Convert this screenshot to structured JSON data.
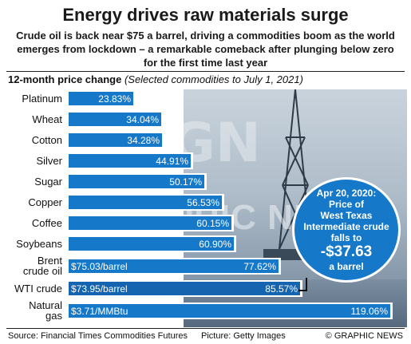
{
  "header": {
    "title": "Energy drives raw materials surge",
    "subtitle": "Crude oil is back near $75 a barrel, driving a commodities boom as the world emerges from lockdown – a remarkable comeback after plunging below zero for the first time last year"
  },
  "chart_data": {
    "type": "bar",
    "orientation": "horizontal",
    "title": "12-month price change",
    "note": "(Selected commodities to July 1, 2021)",
    "categories": [
      "Platinum",
      "Wheat",
      "Cotton",
      "Silver",
      "Sugar",
      "Copper",
      "Coffee",
      "Soybeans",
      "Brent crude oil",
      "WTI crude",
      "Natural gas"
    ],
    "labels": [
      [
        "Platinum"
      ],
      [
        "Wheat"
      ],
      [
        "Cotton"
      ],
      [
        "Silver"
      ],
      [
        "Sugar"
      ],
      [
        "Copper"
      ],
      [
        "Coffee"
      ],
      [
        "Soybeans"
      ],
      [
        "Brent",
        "crude oil"
      ],
      [
        "WTI crude"
      ],
      [
        "Natural",
        "gas"
      ]
    ],
    "values": [
      23.83,
      34.04,
      34.28,
      44.91,
      50.17,
      56.53,
      60.15,
      60.9,
      77.62,
      85.57,
      119.06
    ],
    "value_labels": [
      "23.83%",
      "34.04%",
      "34.28%",
      "44.91%",
      "50.17%",
      "56.53%",
      "60.15%",
      "60.90%",
      "77.62%",
      "85.57%",
      "119.06%"
    ],
    "price_labels": [
      "",
      "",
      "",
      "",
      "",
      "",
      "",
      "",
      "$75.03/barrel",
      "$73.95/barrel",
      "$3.71/MMBtu"
    ],
    "xlim": [
      0,
      125
    ],
    "unit": "%",
    "bar_color": "#1578c9",
    "highlight_color": "#1564b0",
    "highlight_category": "WTI crude",
    "grid": false
  },
  "callout": {
    "lines": [
      "Apr 20, 2020:",
      "Price of",
      "West Texas",
      "Intermediate crude",
      "falls to"
    ],
    "value": "-$37.63",
    "unit": "a barrel",
    "color": "#1578c9"
  },
  "watermark": {
    "logo": "GN",
    "text": "GRAPHIC NEWS"
  },
  "footer": {
    "source": "Source: Financial Times Commodities Futures",
    "picture": "Picture: Getty Images",
    "credit": "© GRAPHIC NEWS"
  }
}
